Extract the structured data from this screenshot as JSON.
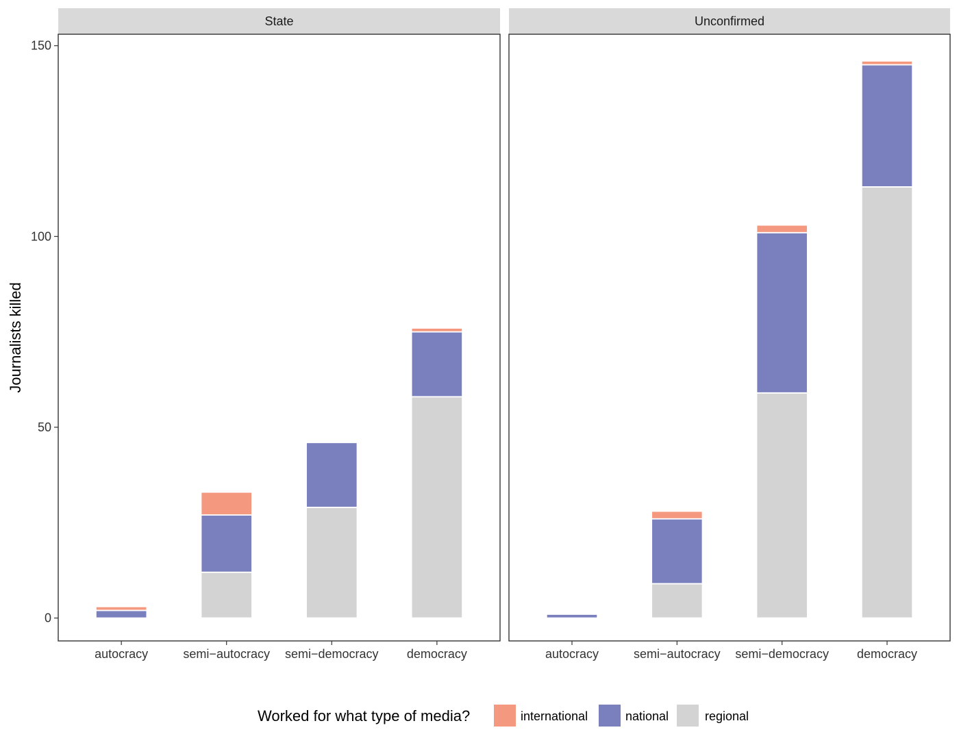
{
  "chart_data": {
    "type": "bar",
    "stacked": true,
    "ylabel": "Journalists killed",
    "ylim": [
      -6,
      153
    ],
    "yticks": [
      0,
      50,
      100,
      150
    ],
    "categories": [
      "autocracy",
      "semi−autocracy",
      "semi−democracy",
      "democracy"
    ],
    "colors": {
      "international": "#F4997F",
      "national": "#7A80BD",
      "regional": "#D3D3D3"
    },
    "legend": {
      "title": "Worked for what type of media?",
      "position": "bottom",
      "items": [
        "international",
        "national",
        "regional"
      ]
    },
    "panels": [
      {
        "strip": "State",
        "series": [
          {
            "name": "regional",
            "values": [
              0,
              12,
              29,
              58
            ]
          },
          {
            "name": "national",
            "values": [
              2,
              15,
              17,
              17
            ]
          },
          {
            "name": "international",
            "values": [
              1,
              6,
              0,
              1
            ]
          }
        ]
      },
      {
        "strip": "Unconfirmed",
        "series": [
          {
            "name": "regional",
            "values": [
              0,
              9,
              59,
              113
            ]
          },
          {
            "name": "national",
            "values": [
              1,
              17,
              42,
              32
            ]
          },
          {
            "name": "international",
            "values": [
              0,
              2,
              2,
              1
            ]
          }
        ]
      }
    ]
  }
}
